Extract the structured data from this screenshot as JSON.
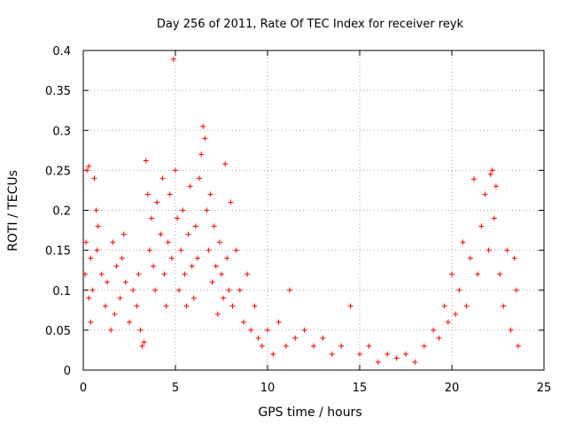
{
  "chart_data": {
    "type": "scatter",
    "title": "Day 256 of 2011, Rate Of TEC Index for receiver reyk",
    "xlabel": "GPS time / hours",
    "ylabel": "ROTI / TECUs",
    "xlim": [
      0,
      25
    ],
    "ylim": [
      0,
      0.4
    ],
    "x_ticks": [
      "0",
      "5",
      "10",
      "15",
      "20",
      "25"
    ],
    "y_ticks": [
      "0",
      "0.05",
      "0.1",
      "0.15",
      "0.2",
      "0.25",
      "0.3",
      "0.35",
      "0.4"
    ],
    "grid": true,
    "marker": "+",
    "color": "#ff0000",
    "series": [
      {
        "points": [
          [
            0.1,
            0.12
          ],
          [
            0.15,
            0.16
          ],
          [
            0.2,
            0.25
          ],
          [
            0.3,
            0.255
          ],
          [
            0.3,
            0.09
          ],
          [
            0.4,
            0.06
          ],
          [
            0.4,
            0.14
          ],
          [
            0.5,
            0.1
          ],
          [
            0.6,
            0.24
          ],
          [
            0.7,
            0.2
          ],
          [
            0.75,
            0.15
          ],
          [
            0.8,
            0.18
          ],
          [
            1.0,
            0.12
          ],
          [
            1.2,
            0.08
          ],
          [
            1.3,
            0.11
          ],
          [
            1.5,
            0.05
          ],
          [
            1.6,
            0.16
          ],
          [
            1.7,
            0.07
          ],
          [
            1.8,
            0.13
          ],
          [
            2.0,
            0.09
          ],
          [
            2.1,
            0.14
          ],
          [
            2.2,
            0.17
          ],
          [
            2.3,
            0.11
          ],
          [
            2.5,
            0.06
          ],
          [
            2.7,
            0.1
          ],
          [
            2.9,
            0.08
          ],
          [
            3.0,
            0.12
          ],
          [
            3.1,
            0.05
          ],
          [
            3.2,
            0.03
          ],
          [
            3.3,
            0.035
          ],
          [
            3.4,
            0.262
          ],
          [
            3.5,
            0.22
          ],
          [
            3.6,
            0.15
          ],
          [
            3.7,
            0.19
          ],
          [
            3.8,
            0.13
          ],
          [
            3.9,
            0.1
          ],
          [
            4.0,
            0.21
          ],
          [
            4.2,
            0.17
          ],
          [
            4.3,
            0.24
          ],
          [
            4.4,
            0.12
          ],
          [
            4.5,
            0.08
          ],
          [
            4.6,
            0.16
          ],
          [
            4.7,
            0.22
          ],
          [
            4.8,
            0.14
          ],
          [
            4.9,
            0.389
          ],
          [
            5.0,
            0.25
          ],
          [
            5.1,
            0.19
          ],
          [
            5.2,
            0.1
          ],
          [
            5.3,
            0.15
          ],
          [
            5.4,
            0.2
          ],
          [
            5.5,
            0.12
          ],
          [
            5.6,
            0.08
          ],
          [
            5.7,
            0.17
          ],
          [
            5.8,
            0.23
          ],
          [
            5.9,
            0.13
          ],
          [
            6.0,
            0.09
          ],
          [
            6.1,
            0.18
          ],
          [
            6.2,
            0.14
          ],
          [
            6.3,
            0.24
          ],
          [
            6.4,
            0.27
          ],
          [
            6.5,
            0.305
          ],
          [
            6.6,
            0.29
          ],
          [
            6.7,
            0.2
          ],
          [
            6.8,
            0.15
          ],
          [
            6.9,
            0.22
          ],
          [
            7.0,
            0.11
          ],
          [
            7.1,
            0.18
          ],
          [
            7.2,
            0.13
          ],
          [
            7.3,
            0.07
          ],
          [
            7.4,
            0.16
          ],
          [
            7.5,
            0.12
          ],
          [
            7.6,
            0.09
          ],
          [
            7.7,
            0.258
          ],
          [
            7.8,
            0.14
          ],
          [
            7.9,
            0.1
          ],
          [
            8.0,
            0.21
          ],
          [
            8.1,
            0.08
          ],
          [
            8.3,
            0.15
          ],
          [
            8.5,
            0.1
          ],
          [
            8.7,
            0.06
          ],
          [
            8.9,
            0.12
          ],
          [
            9.1,
            0.05
          ],
          [
            9.3,
            0.08
          ],
          [
            9.5,
            0.04
          ],
          [
            9.7,
            0.03
          ],
          [
            10.0,
            0.05
          ],
          [
            10.3,
            0.02
          ],
          [
            10.6,
            0.06
          ],
          [
            11.0,
            0.03
          ],
          [
            11.2,
            0.1
          ],
          [
            11.5,
            0.04
          ],
          [
            12.0,
            0.05
          ],
          [
            12.5,
            0.03
          ],
          [
            13.0,
            0.04
          ],
          [
            13.5,
            0.02
          ],
          [
            14.0,
            0.03
          ],
          [
            14.5,
            0.08
          ],
          [
            15.0,
            0.02
          ],
          [
            15.5,
            0.03
          ],
          [
            16.0,
            0.01
          ],
          [
            16.5,
            0.02
          ],
          [
            17.0,
            0.015
          ],
          [
            17.5,
            0.02
          ],
          [
            18.0,
            0.01
          ],
          [
            18.5,
            0.03
          ],
          [
            19.0,
            0.05
          ],
          [
            19.3,
            0.04
          ],
          [
            19.6,
            0.08
          ],
          [
            19.8,
            0.06
          ],
          [
            20.0,
            0.12
          ],
          [
            20.2,
            0.07
          ],
          [
            20.4,
            0.1
          ],
          [
            20.6,
            0.16
          ],
          [
            20.8,
            0.08
          ],
          [
            21.0,
            0.14
          ],
          [
            21.2,
            0.239
          ],
          [
            21.4,
            0.12
          ],
          [
            21.6,
            0.18
          ],
          [
            21.8,
            0.22
          ],
          [
            22.0,
            0.15
          ],
          [
            22.1,
            0.245
          ],
          [
            22.2,
            0.25
          ],
          [
            22.3,
            0.19
          ],
          [
            22.4,
            0.23
          ],
          [
            22.6,
            0.12
          ],
          [
            22.8,
            0.08
          ],
          [
            23.0,
            0.15
          ],
          [
            23.2,
            0.05
          ],
          [
            23.4,
            0.14
          ],
          [
            23.5,
            0.1
          ],
          [
            23.6,
            0.03
          ]
        ]
      }
    ]
  }
}
